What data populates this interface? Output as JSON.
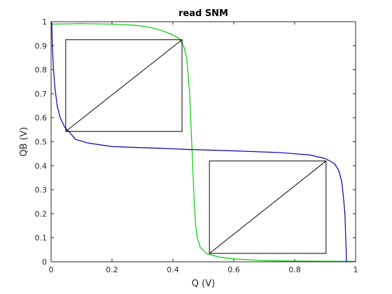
{
  "chart_data": {
    "type": "line",
    "title": "read SNM",
    "xlabel": "Q (V)",
    "ylabel": "QB (V)",
    "xlim": [
      0,
      1
    ],
    "ylim": [
      0,
      1
    ],
    "grid": false,
    "x_ticks": [
      0,
      0.2,
      0.4,
      0.6,
      0.8,
      1
    ],
    "x_tick_labels": [
      "0",
      "0.2",
      "0.4",
      "0.6",
      "0.8",
      "1"
    ],
    "y_ticks": [
      0,
      0.1,
      0.2,
      0.3,
      0.4,
      0.5,
      0.6,
      0.7,
      0.8,
      0.9,
      1
    ],
    "y_tick_labels": [
      "0",
      "0.1",
      "0.2",
      "0.3",
      "0.4",
      "0.5",
      "0.6",
      "0.7",
      "0.8",
      "0.9",
      "1"
    ],
    "series": [
      {
        "color": "#00cc00",
        "points": [
          [
            0.0,
            0.99
          ],
          [
            0.1,
            0.992
          ],
          [
            0.2,
            0.99
          ],
          [
            0.28,
            0.985
          ],
          [
            0.33,
            0.975
          ],
          [
            0.37,
            0.96
          ],
          [
            0.4,
            0.945
          ],
          [
            0.42,
            0.93
          ],
          [
            0.435,
            0.9
          ],
          [
            0.445,
            0.85
          ],
          [
            0.45,
            0.78
          ],
          [
            0.455,
            0.7
          ],
          [
            0.46,
            0.55
          ],
          [
            0.465,
            0.4
          ],
          [
            0.47,
            0.25
          ],
          [
            0.475,
            0.15
          ],
          [
            0.48,
            0.1
          ],
          [
            0.49,
            0.06
          ],
          [
            0.51,
            0.035
          ],
          [
            0.55,
            0.02
          ],
          [
            0.6,
            0.012
          ],
          [
            0.7,
            0.005
          ],
          [
            0.8,
            0.003
          ],
          [
            1.0,
            0.002
          ]
        ]
      },
      {
        "color": "#0000aa",
        "points": [
          [
            0.002,
            1.0
          ],
          [
            0.004,
            0.9
          ],
          [
            0.008,
            0.8
          ],
          [
            0.013,
            0.72
          ],
          [
            0.02,
            0.65
          ],
          [
            0.03,
            0.6
          ],
          [
            0.045,
            0.56
          ],
          [
            0.06,
            0.54
          ],
          [
            0.08,
            0.51
          ],
          [
            0.12,
            0.495
          ],
          [
            0.2,
            0.48
          ],
          [
            0.35,
            0.473
          ],
          [
            0.45,
            0.468
          ],
          [
            0.6,
            0.462
          ],
          [
            0.75,
            0.455
          ],
          [
            0.85,
            0.445
          ],
          [
            0.9,
            0.43
          ],
          [
            0.93,
            0.41
          ],
          [
            0.945,
            0.38
          ],
          [
            0.955,
            0.33
          ],
          [
            0.96,
            0.27
          ],
          [
            0.965,
            0.2
          ],
          [
            0.967,
            0.12
          ],
          [
            0.969,
            0.05
          ],
          [
            0.97,
            0.0
          ]
        ]
      }
    ],
    "squares": [
      {
        "x0": 0.048,
        "y0": 0.543,
        "x1": 0.43,
        "y1": 0.925
      },
      {
        "x0": 0.52,
        "y0": 0.035,
        "x1": 0.903,
        "y1": 0.42
      }
    ],
    "square_color": "#000000"
  }
}
